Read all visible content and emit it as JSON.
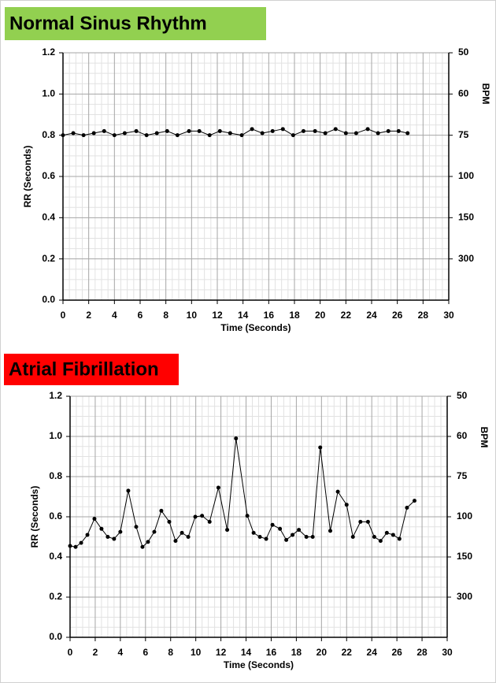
{
  "chart_data": [
    {
      "type": "line",
      "title": "Normal Sinus Rhythm",
      "title_color": "#92d050",
      "xlabel": "Time (Seconds)",
      "ylabel": "RR (Seconds)",
      "y2label": "BPM",
      "x": [
        0,
        0.8,
        1.6,
        2.4,
        3.2,
        4.0,
        4.8,
        5.7,
        6.5,
        7.3,
        8.1,
        8.9,
        9.8,
        10.6,
        11.4,
        12.2,
        13.0,
        13.9,
        14.7,
        15.5,
        16.3,
        17.1,
        17.9,
        18.7,
        19.6,
        20.4,
        21.2,
        22.0,
        22.8,
        23.7,
        24.5,
        25.3,
        26.1,
        26.8
      ],
      "series": [
        {
          "color": "#000000",
          "values": [
            0.8,
            0.81,
            0.8,
            0.81,
            0.82,
            0.8,
            0.81,
            0.82,
            0.8,
            0.81,
            0.82,
            0.8,
            0.82,
            0.82,
            0.8,
            0.82,
            0.81,
            0.8,
            0.83,
            0.81,
            0.82,
            0.83,
            0.8,
            0.82,
            0.82,
            0.81,
            0.83,
            0.81,
            0.81,
            0.83,
            0.81,
            0.82,
            0.82,
            0.81
          ]
        }
      ],
      "xlim": [
        0,
        30
      ],
      "xticks": [
        0,
        2,
        4,
        6,
        8,
        10,
        12,
        14,
        16,
        18,
        20,
        22,
        24,
        26,
        28,
        30
      ],
      "ylim": [
        0,
        1.2
      ],
      "yticks": [
        {
          "value": 0,
          "label": "0.0"
        },
        0.2,
        0.4,
        0.6,
        0.8,
        {
          "value": 1,
          "label": "1.0"
        },
        1.2
      ],
      "y2scale": "reciprocal",
      "y2lim": [
        null,
        50
      ],
      "y2ticks": [
        50,
        60,
        75,
        100,
        150,
        300
      ],
      "grid": true
    },
    {
      "type": "line",
      "title": "Atrial Fibrillation",
      "title_color": "#ff0000",
      "xlabel": "Time (Seconds)",
      "ylabel": "RR (Seconds)",
      "y2label": "BPM",
      "x": [
        0,
        0.44,
        0.88,
        1.38,
        1.94,
        2.5,
        3.0,
        3.5,
        4.0,
        4.63,
        5.26,
        5.76,
        6.2,
        6.7,
        7.26,
        7.89,
        8.39,
        8.9,
        9.4,
        9.96,
        10.5,
        11.1,
        11.8,
        12.5,
        13.2,
        14.1,
        14.6,
        15.1,
        15.6,
        16.1,
        16.7,
        17.2,
        17.7,
        18.2,
        18.8,
        19.3,
        19.9,
        20.7,
        21.3,
        22.0,
        22.5,
        23.1,
        23.7,
        24.2,
        24.7,
        25.2,
        25.7,
        26.2,
        26.8,
        27.4
      ],
      "series": [
        {
          "color": "#000000",
          "values": [
            0.455,
            0.45,
            0.47,
            0.51,
            0.59,
            0.54,
            0.5,
            0.49,
            0.525,
            0.73,
            0.55,
            0.45,
            0.475,
            0.525,
            0.63,
            0.575,
            0.48,
            0.52,
            0.5,
            0.6,
            0.605,
            0.575,
            0.745,
            0.535,
            0.99,
            0.605,
            0.52,
            0.5,
            0.49,
            0.56,
            0.54,
            0.485,
            0.51,
            0.535,
            0.5,
            0.5,
            0.945,
            0.53,
            0.725,
            0.66,
            0.5,
            0.575,
            0.575,
            0.5,
            0.48,
            0.52,
            0.51,
            0.49,
            0.645,
            0.68
          ]
        }
      ],
      "xlim": [
        0,
        30
      ],
      "xticks": [
        0,
        2,
        4,
        6,
        8,
        10,
        12,
        14,
        16,
        18,
        20,
        22,
        24,
        26,
        28,
        30
      ],
      "ylim": [
        0,
        1.2
      ],
      "yticks": [
        {
          "value": 0,
          "label": "0.0"
        },
        0.2,
        0.4,
        0.6,
        0.8,
        {
          "value": 1,
          "label": "1.0"
        },
        1.2
      ],
      "y2scale": "reciprocal",
      "y2lim": [
        null,
        50
      ],
      "y2ticks": [
        50,
        60,
        75,
        100,
        150,
        300
      ],
      "grid": true
    }
  ]
}
